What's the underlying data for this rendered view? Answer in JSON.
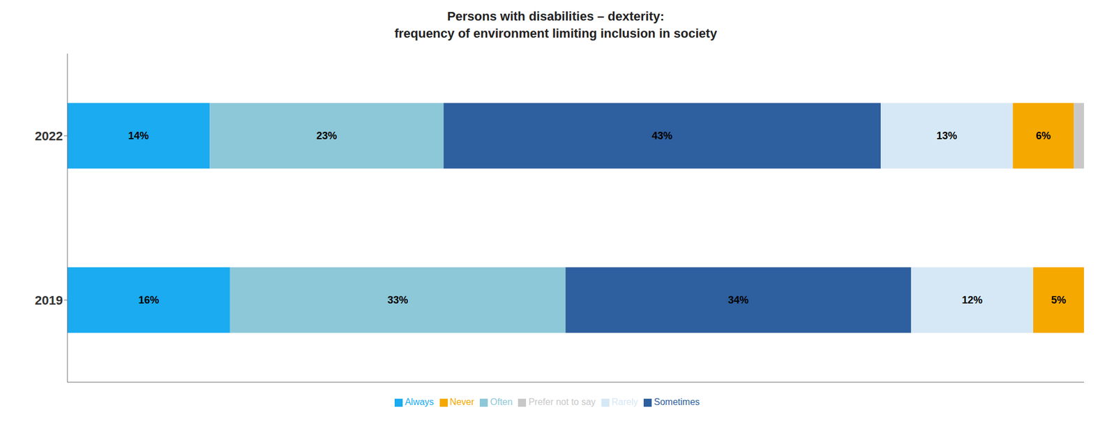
{
  "chart_data": {
    "type": "bar",
    "orientation": "horizontal",
    "stacked": true,
    "title": "Persons with disabilities – dexterity:\nfrequency of environment limiting inclusion in society",
    "categories": [
      "2019",
      "2022"
    ],
    "series": [
      {
        "name": "Always",
        "color": "#1AABF0",
        "values": [
          16,
          14
        ],
        "value_labels": [
          "16%",
          "14%"
        ]
      },
      {
        "name": "Often",
        "color": "#8DC8D8",
        "values": [
          33,
          23
        ],
        "value_labels": [
          "33%",
          "23%"
        ]
      },
      {
        "name": "Sometimes",
        "color": "#2E5F9E",
        "values": [
          34,
          43
        ],
        "value_labels": [
          "34%",
          "43%"
        ]
      },
      {
        "name": "Rarely",
        "color": "#D6E8F5",
        "values": [
          12,
          13
        ],
        "value_labels": [
          "12%",
          "13%"
        ]
      },
      {
        "name": "Never",
        "color": "#F5A800",
        "values": [
          5,
          6
        ],
        "value_labels": [
          "5%",
          "6%"
        ]
      },
      {
        "name": "Prefer not to say",
        "color": "#C8C8C8",
        "values": [
          0,
          1
        ],
        "value_labels": [
          null,
          null
        ]
      }
    ],
    "xlim": [
      0,
      100
    ],
    "xticks": [],
    "tick_labels": "y",
    "data_labels": true,
    "legend": "bottom",
    "grid": false
  }
}
